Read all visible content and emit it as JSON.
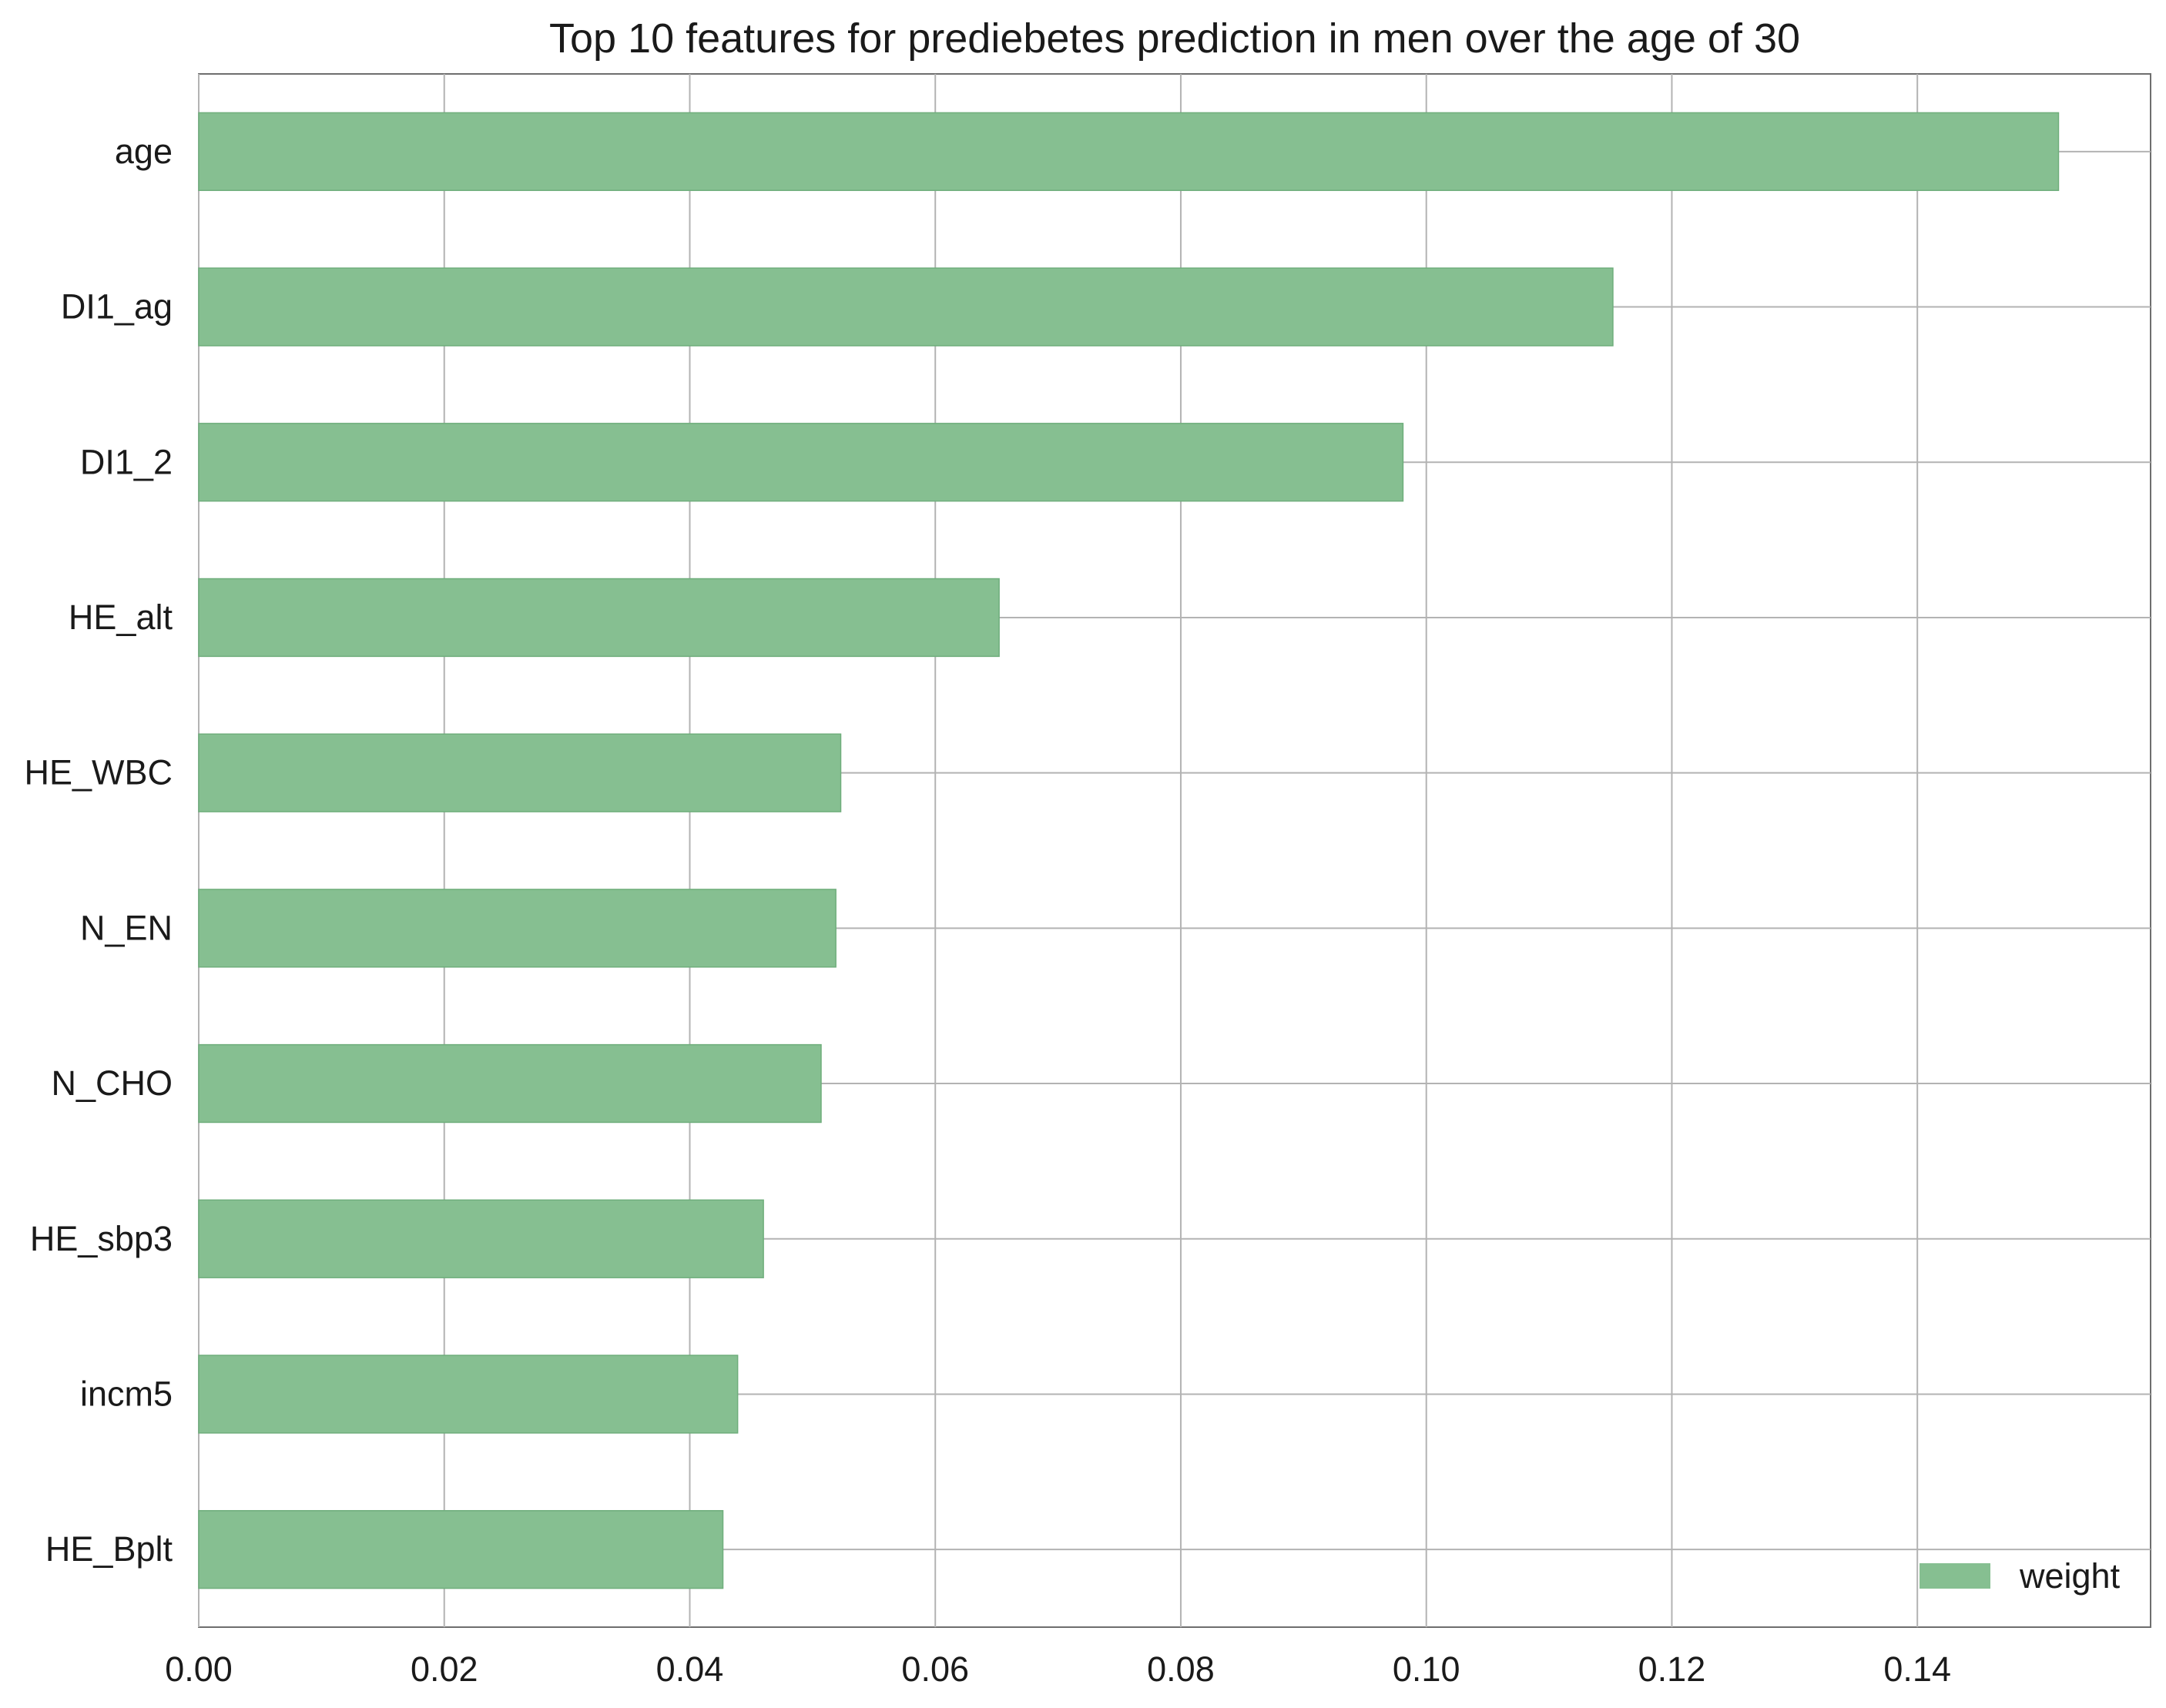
{
  "chart_data": {
    "type": "bar",
    "orientation": "horizontal",
    "title": "Top 10 features for prediebetes prediction in men over the age of 30",
    "xlabel": "",
    "ylabel": "",
    "categories": [
      "age",
      "DI1_ag",
      "DI1_2",
      "HE_alt",
      "HE_WBC",
      "N_EN",
      "N_CHO",
      "HE_sbp3",
      "incm5",
      "HE_Bplt"
    ],
    "series": [
      {
        "name": "weight",
        "color": "#86bf91",
        "values": [
          0.1515,
          0.1152,
          0.0981,
          0.0652,
          0.0523,
          0.0519,
          0.0507,
          0.046,
          0.0439,
          0.0427
        ]
      }
    ],
    "xlim": [
      0,
      0.159
    ],
    "xticks": [
      0,
      0.02,
      0.04,
      0.06,
      0.08,
      0.1,
      0.12,
      0.14
    ],
    "xtick_labels": [
      "0.00",
      "0.02",
      "0.04",
      "0.06",
      "0.08",
      "0.10",
      "0.12",
      "0.14"
    ],
    "grid": true,
    "legend": {
      "position": "bottom-right",
      "entries": [
        "weight"
      ]
    }
  }
}
